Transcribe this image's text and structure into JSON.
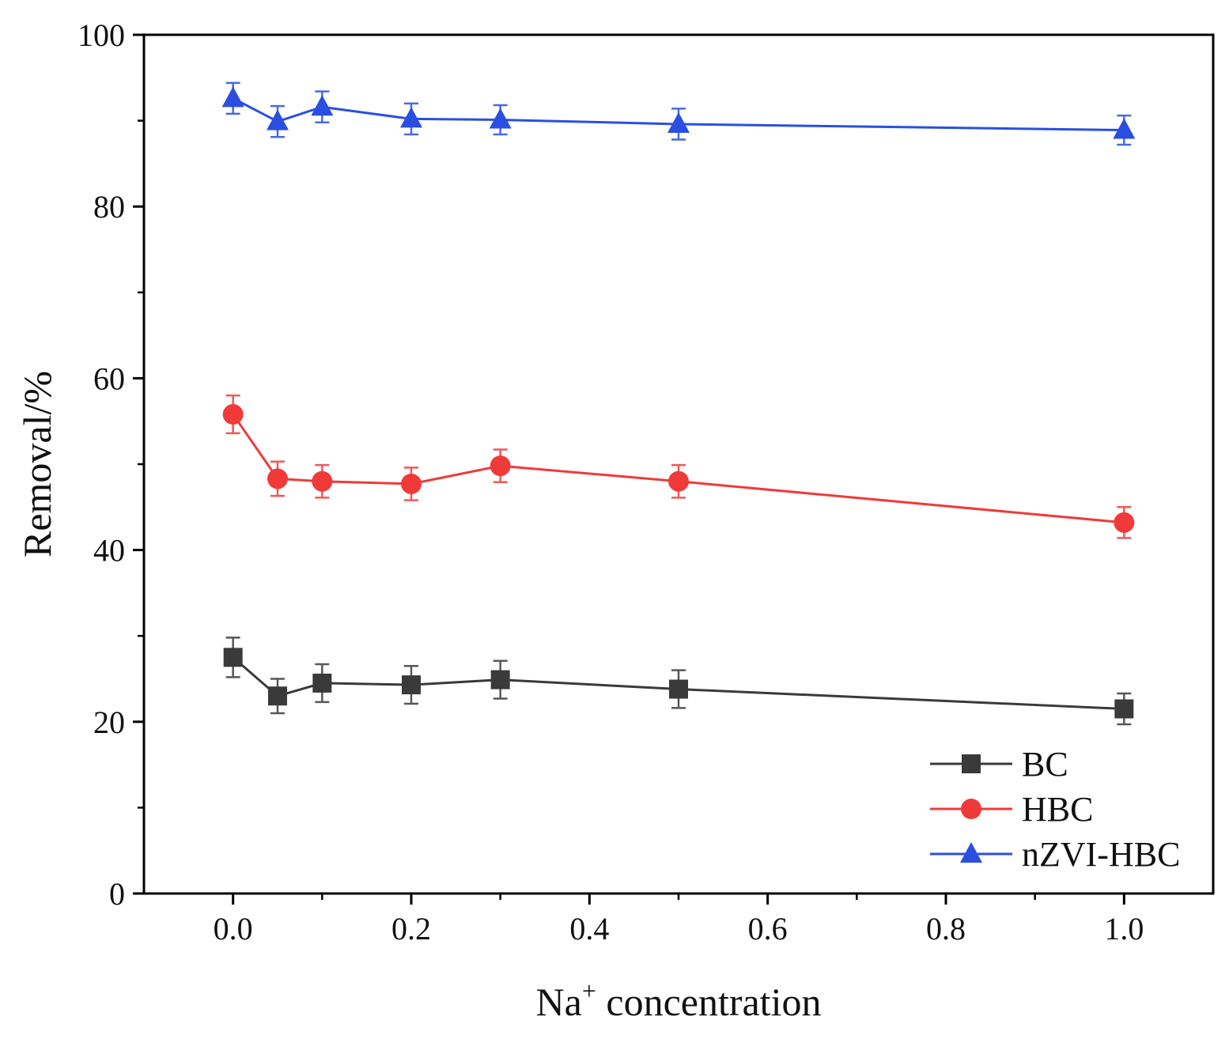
{
  "chart_data": {
    "type": "line",
    "title": "",
    "xlabel": "Na",
    "xlabel_superscript": "+",
    "xlabel_suffix": " concentration",
    "ylabel": "Removal/%",
    "xlim": [
      -0.1,
      1.1
    ],
    "ylim": [
      0,
      100
    ],
    "x_ticks": [
      0.0,
      0.2,
      0.4,
      0.6,
      0.8,
      1.0
    ],
    "x_tick_labels": [
      "0.0",
      "0.2",
      "0.4",
      "0.6",
      "0.8",
      "1.0"
    ],
    "y_ticks": [
      0,
      20,
      40,
      60,
      80,
      100
    ],
    "y_tick_labels": [
      "0",
      "20",
      "40",
      "60",
      "80",
      "100"
    ],
    "grid": false,
    "legend_position": "bottom-right",
    "x": [
      0.0,
      0.05,
      0.1,
      0.2,
      0.3,
      0.5,
      1.0
    ],
    "series": [
      {
        "name": "BC",
        "color": "#3a3a3a",
        "marker": "square",
        "values": [
          27.5,
          23.0,
          24.5,
          24.3,
          24.9,
          23.8,
          21.5
        ],
        "errors": [
          2.3,
          2.0,
          2.2,
          2.2,
          2.2,
          2.2,
          1.8
        ]
      },
      {
        "name": "HBC",
        "color": "#f03a3a",
        "marker": "circle",
        "values": [
          55.8,
          48.3,
          48.0,
          47.7,
          49.8,
          48.0,
          43.2
        ],
        "errors": [
          2.2,
          2.0,
          1.9,
          1.9,
          1.9,
          1.9,
          1.8
        ]
      },
      {
        "name": "nZVI-HBC",
        "color": "#2a4fe0",
        "marker": "triangle",
        "values": [
          92.6,
          89.9,
          91.6,
          90.2,
          90.1,
          89.6,
          88.9
        ],
        "errors": [
          1.8,
          1.8,
          1.8,
          1.8,
          1.7,
          1.8,
          1.7
        ]
      }
    ]
  }
}
